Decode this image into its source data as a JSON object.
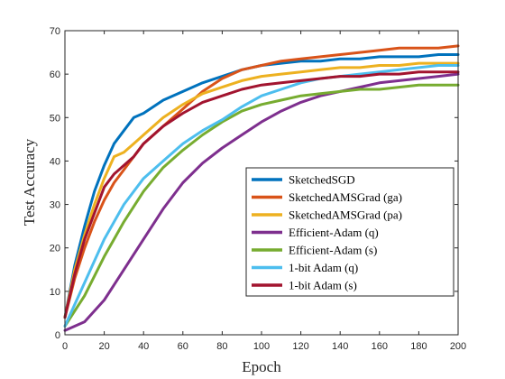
{
  "chart_data": {
    "type": "line",
    "title": "",
    "xlabel": "Epoch",
    "ylabel": "Test Accuracy",
    "xlim": [
      0,
      200
    ],
    "ylim": [
      0,
      70
    ],
    "xticks": [
      "0",
      "20",
      "40",
      "60",
      "80",
      "100",
      "120",
      "140",
      "160",
      "180",
      "200"
    ],
    "yticks": [
      "0",
      "10",
      "20",
      "30",
      "40",
      "50",
      "60",
      "70"
    ],
    "grid": false,
    "legend_position": "bottom-right",
    "series": [
      {
        "name": "SketchedSGD",
        "color": "#0072BD",
        "x": [
          0,
          5,
          10,
          15,
          20,
          25,
          30,
          35,
          40,
          50,
          60,
          70,
          80,
          90,
          100,
          110,
          120,
          130,
          140,
          150,
          160,
          170,
          180,
          190,
          200
        ],
        "y": [
          4,
          16,
          25,
          33,
          39,
          44,
          47,
          50,
          51,
          54,
          56,
          58,
          59.5,
          61,
          62,
          62.5,
          63,
          63,
          63.5,
          63.5,
          64,
          64,
          64,
          64.5,
          64.5
        ]
      },
      {
        "name": "SketchedAMSGrad (ga)",
        "color": "#D95319",
        "x": [
          0,
          5,
          10,
          15,
          20,
          25,
          30,
          35,
          40,
          50,
          60,
          70,
          80,
          90,
          100,
          110,
          120,
          130,
          140,
          150,
          160,
          170,
          180,
          190,
          200
        ],
        "y": [
          4,
          13,
          20,
          26,
          31,
          35,
          38,
          41,
          44,
          48,
          52,
          56,
          59,
          61,
          62,
          63,
          63.5,
          64,
          64.5,
          65,
          65.5,
          66,
          66,
          66,
          66.5
        ]
      },
      {
        "name": "SketchedAMSGrad (pa)",
        "color": "#EDB120",
        "x": [
          0,
          5,
          10,
          15,
          20,
          25,
          30,
          35,
          40,
          50,
          60,
          70,
          80,
          90,
          100,
          110,
          120,
          130,
          140,
          150,
          160,
          170,
          180,
          190,
          200
        ],
        "y": [
          4,
          15,
          23,
          30,
          36,
          41,
          42,
          44,
          46,
          50,
          53,
          55.5,
          57,
          58.5,
          59.5,
          60,
          60.5,
          61,
          61.5,
          61.5,
          62,
          62,
          62.5,
          62.5,
          62.5
        ]
      },
      {
        "name": "Efficient-Adam (q)",
        "color": "#7E2F8E",
        "x": [
          0,
          10,
          20,
          30,
          40,
          50,
          60,
          70,
          80,
          90,
          100,
          110,
          120,
          130,
          140,
          150,
          160,
          170,
          180,
          190,
          200
        ],
        "y": [
          1,
          3,
          8,
          15,
          22,
          29,
          35,
          39.5,
          43,
          46,
          49,
          51.5,
          53.5,
          55,
          56,
          57,
          58,
          58.5,
          59,
          59.5,
          60
        ]
      },
      {
        "name": "Efficient-Adam (s)",
        "color": "#77AC30",
        "x": [
          0,
          10,
          20,
          30,
          40,
          50,
          60,
          70,
          80,
          90,
          100,
          110,
          120,
          130,
          140,
          150,
          160,
          170,
          180,
          190,
          200
        ],
        "y": [
          2,
          9,
          18,
          26,
          33,
          38.5,
          42.5,
          46,
          49,
          51.5,
          53,
          54,
          55,
          55.5,
          56,
          56.5,
          56.5,
          57,
          57.5,
          57.5,
          57.5
        ]
      },
      {
        "name": "1-bit Adam (q)",
        "color": "#4DBEEE",
        "x": [
          0,
          10,
          20,
          30,
          40,
          50,
          60,
          70,
          80,
          90,
          100,
          110,
          120,
          130,
          140,
          150,
          160,
          170,
          180,
          190,
          200
        ],
        "y": [
          2,
          12,
          22,
          30,
          36,
          40,
          44,
          47,
          49.5,
          52.5,
          55,
          56.5,
          58,
          59,
          59.5,
          60,
          60.5,
          61,
          61.5,
          62,
          62
        ]
      },
      {
        "name": "1-bit Adam (s)",
        "color": "#A2142F",
        "x": [
          0,
          5,
          10,
          15,
          20,
          25,
          30,
          35,
          40,
          50,
          60,
          70,
          80,
          90,
          100,
          110,
          120,
          130,
          140,
          150,
          160,
          170,
          180,
          190,
          200
        ],
        "y": [
          4,
          14,
          22,
          28,
          34,
          37,
          39,
          41,
          44,
          48,
          51,
          53.5,
          55,
          56.5,
          57.5,
          58,
          58.5,
          59,
          59.5,
          59.5,
          60,
          60,
          60.5,
          60.5,
          60.5
        ]
      }
    ]
  }
}
